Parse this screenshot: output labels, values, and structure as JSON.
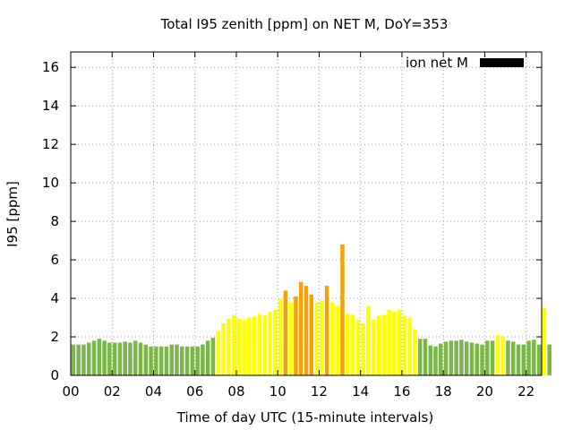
{
  "chart_data": {
    "type": "bar",
    "title": "Total I95 zenith [ppm] on NET M, DoY=353",
    "xlabel": "Time of day UTC (15-minute intervals)",
    "ylabel": "I95 [ppm]",
    "xlim": [
      0,
      22.75
    ],
    "ylim": [
      0,
      16.8
    ],
    "x_ticks": [
      "00",
      "02",
      "04",
      "06",
      "08",
      "10",
      "12",
      "14",
      "16",
      "18",
      "20",
      "22"
    ],
    "y_ticks": [
      "0",
      "2",
      "4",
      "6",
      "8",
      "10",
      "12",
      "14",
      "16"
    ],
    "grid": true,
    "legend": {
      "label": "ion net M",
      "color": "#000000",
      "placement": "top-right"
    },
    "bar_interval_hours": 0.25,
    "colors": {
      "green": "#7ab648",
      "yellow": "#ffff00",
      "orange": "#f4a20a"
    },
    "values": [
      1.6,
      1.6,
      1.6,
      1.7,
      1.8,
      1.9,
      1.8,
      1.7,
      1.7,
      1.7,
      1.75,
      1.7,
      1.8,
      1.7,
      1.6,
      1.5,
      1.5,
      1.5,
      1.5,
      1.6,
      1.6,
      1.5,
      1.5,
      1.5,
      1.5,
      1.6,
      1.8,
      1.95,
      2.3,
      2.7,
      2.95,
      3.15,
      2.95,
      2.9,
      3.0,
      3.05,
      3.2,
      3.1,
      3.3,
      3.4,
      3.95,
      4.4,
      3.8,
      4.1,
      4.85,
      4.65,
      4.2,
      3.8,
      3.9,
      4.65,
      3.8,
      3.6,
      6.8,
      3.2,
      3.15,
      2.9,
      2.7,
      3.6,
      2.9,
      3.1,
      3.15,
      3.4,
      3.3,
      3.4,
      3.1,
      3.0,
      2.4,
      1.9,
      1.9,
      1.55,
      1.5,
      1.65,
      1.75,
      1.8,
      1.8,
      1.85,
      1.75,
      1.7,
      1.65,
      1.6,
      1.8,
      1.8,
      2.1,
      2.05,
      1.8,
      1.75,
      1.6,
      1.6,
      1.8,
      1.85,
      1.6,
      3.5,
      1.6
    ],
    "bar_colors": [
      "green",
      "green",
      "green",
      "green",
      "green",
      "green",
      "green",
      "green",
      "green",
      "green",
      "green",
      "green",
      "green",
      "green",
      "green",
      "green",
      "green",
      "green",
      "green",
      "green",
      "green",
      "green",
      "green",
      "green",
      "green",
      "green",
      "green",
      "green",
      "yellow",
      "yellow",
      "yellow",
      "yellow",
      "yellow",
      "yellow",
      "yellow",
      "yellow",
      "yellow",
      "yellow",
      "yellow",
      "yellow",
      "yellow",
      "orange",
      "yellow",
      "orange",
      "orange",
      "orange",
      "orange",
      "yellow",
      "yellow",
      "orange",
      "yellow",
      "yellow",
      "orange",
      "yellow",
      "yellow",
      "yellow",
      "yellow",
      "yellow",
      "yellow",
      "yellow",
      "yellow",
      "yellow",
      "yellow",
      "yellow",
      "yellow",
      "yellow",
      "yellow",
      "green",
      "green",
      "green",
      "green",
      "green",
      "green",
      "green",
      "green",
      "green",
      "green",
      "green",
      "green",
      "green",
      "green",
      "green",
      "yellow",
      "yellow",
      "green",
      "green",
      "green",
      "green",
      "green",
      "green",
      "green",
      "yellow",
      "green"
    ]
  }
}
